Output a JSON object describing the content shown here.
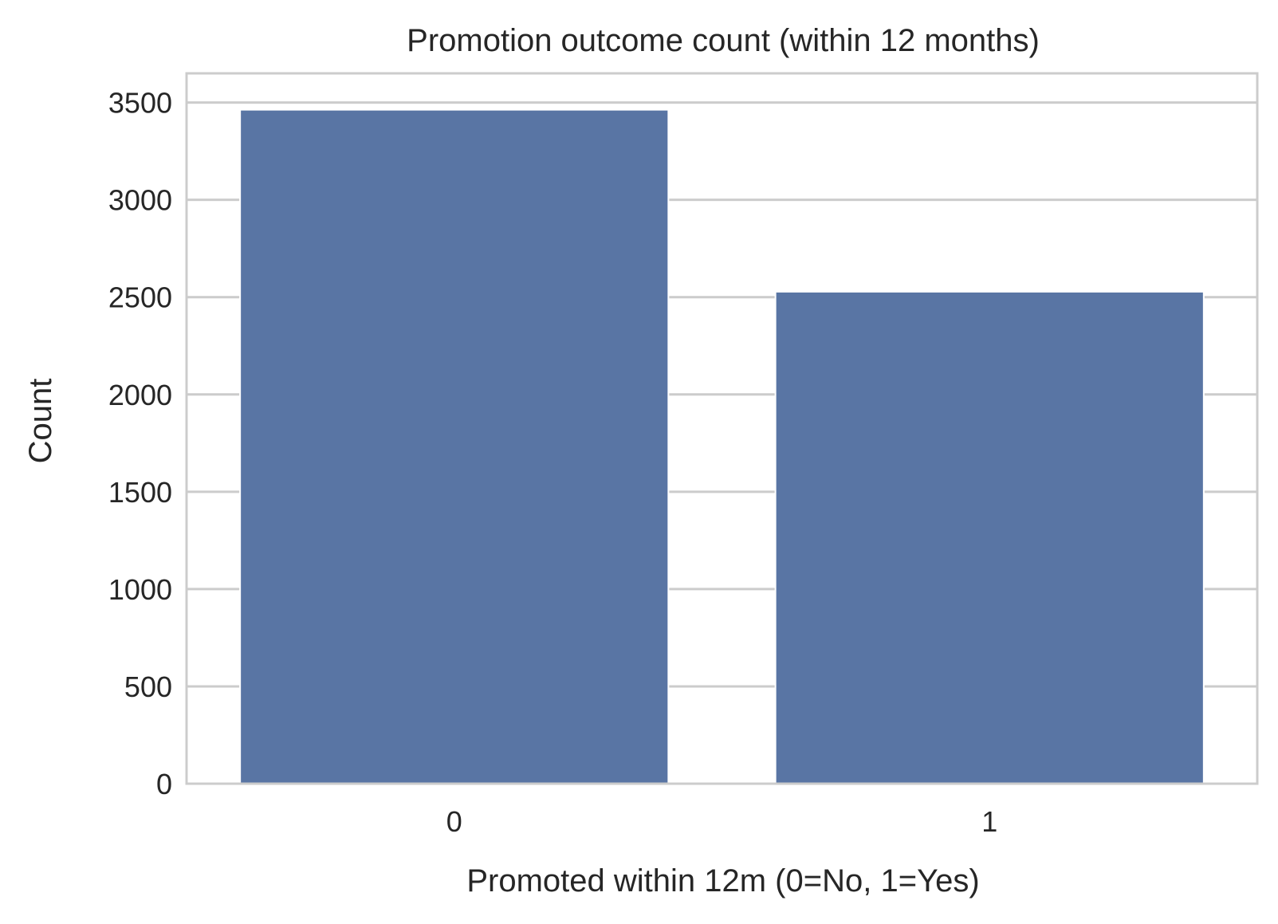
{
  "chart_data": {
    "type": "bar",
    "title": "Promotion outcome count (within 12 months)",
    "xlabel": "Promoted within 12m (0=No, 1=Yes)",
    "ylabel": "Count",
    "categories": [
      "0",
      "1"
    ],
    "values": [
      3463,
      2528
    ],
    "ylim": [
      0,
      3650
    ],
    "yticks": [
      0,
      500,
      1000,
      1500,
      2000,
      2500,
      3000,
      3500
    ],
    "grid": true,
    "bar_color": "#5975a4",
    "grid_color": "#cccccc",
    "frame_color": "#cccccc"
  }
}
